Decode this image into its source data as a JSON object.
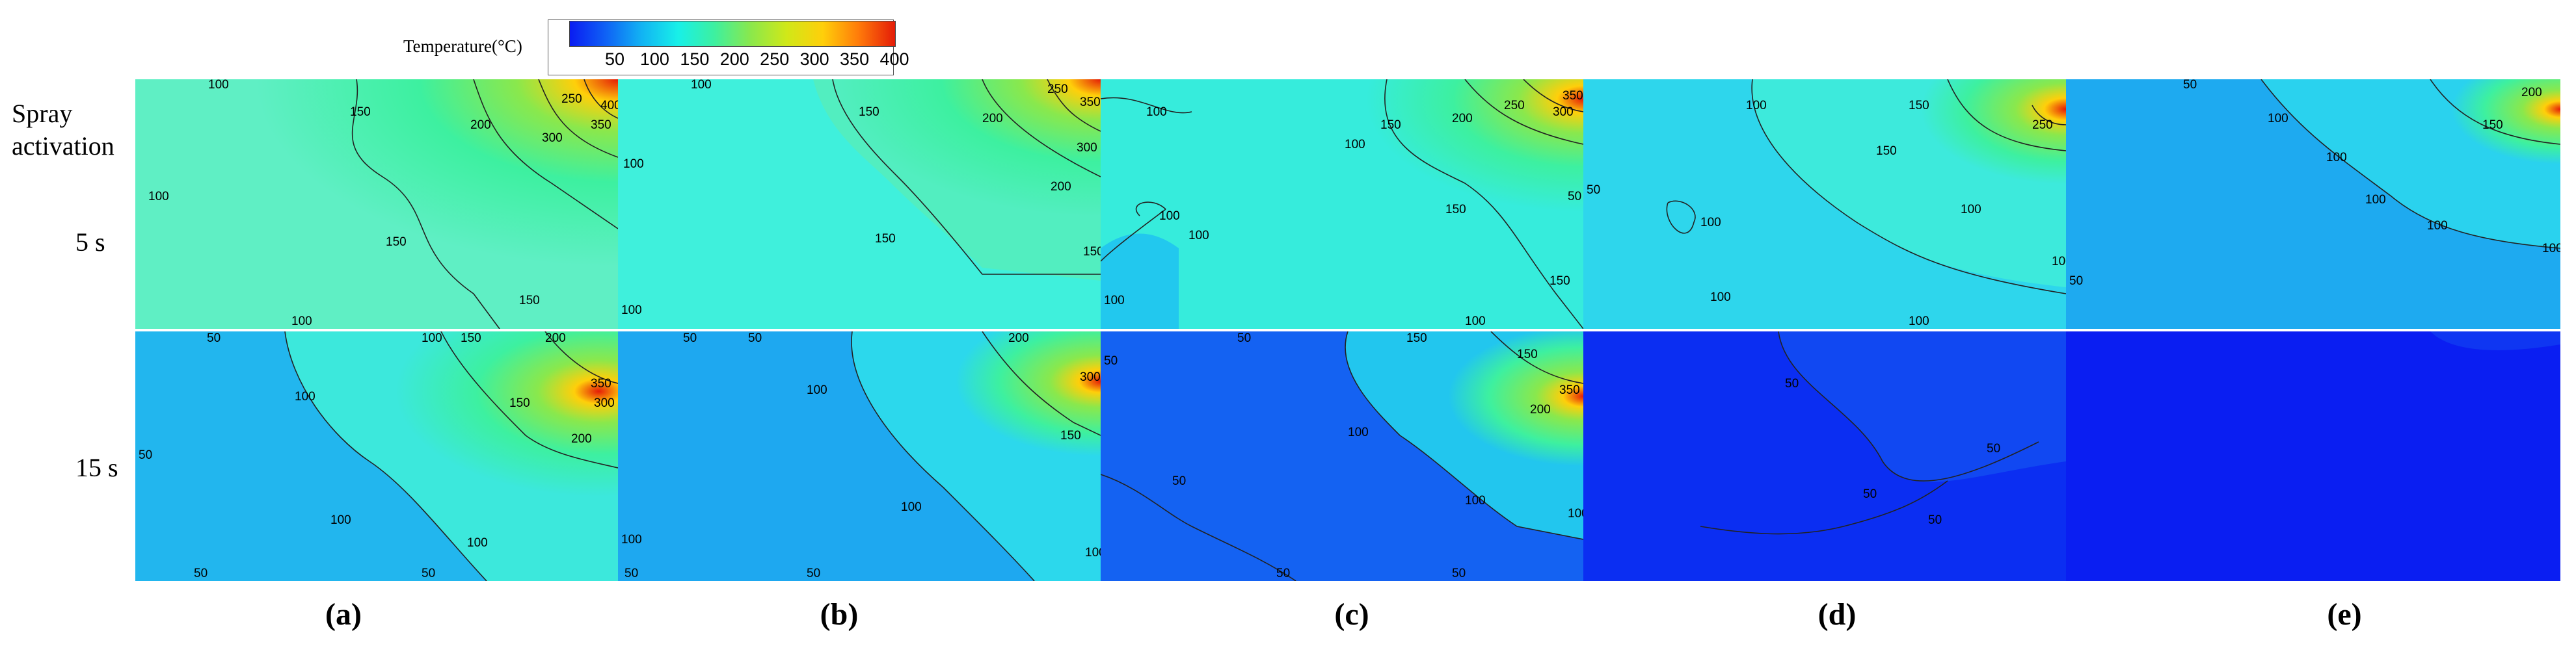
{
  "colorbar": {
    "title": "Temperature(°C)",
    "ticks": [
      "50",
      "100",
      "150",
      "200",
      "250",
      "300",
      "350",
      "400"
    ],
    "colors": [
      "#0a1cf2",
      "#0f62f5",
      "#12b4f3",
      "#18f0e8",
      "#3df0a0",
      "#8ae84c",
      "#d0e818",
      "#ffcf0a",
      "#ff7a0a",
      "#e41c08"
    ]
  },
  "row_labels": {
    "spray": "Spray activation",
    "t5": "5 s",
    "t15": "15 s"
  },
  "captions": [
    "(a)",
    "(b)",
    "(c)",
    "(d)",
    "(e)"
  ],
  "panels": {
    "a5": {
      "labels": [
        "100",
        "150",
        "200",
        "250",
        "300",
        "350",
        "400",
        "100",
        "150",
        "150",
        "100"
      ]
    },
    "b5": {
      "labels": [
        "100",
        "150",
        "200",
        "250",
        "350",
        "300",
        "200",
        "150",
        "100",
        "150",
        "100"
      ]
    },
    "c5": {
      "labels": [
        "100",
        "150",
        "200",
        "250",
        "300",
        "350",
        "100",
        "100",
        "150",
        "150",
        "100",
        "100",
        "100",
        "50"
      ]
    },
    "d5": {
      "labels": [
        "100",
        "150",
        "250",
        "150",
        "100",
        "100",
        "100",
        "100",
        "100",
        "50"
      ]
    },
    "e5": {
      "labels": [
        "50",
        "100",
        "150",
        "200",
        "100",
        "100",
        "100",
        "50",
        "100"
      ]
    },
    "a15": {
      "labels": [
        "50",
        "100",
        "100",
        "150",
        "200",
        "350",
        "300",
        "150",
        "200",
        "100",
        "50",
        "100",
        "50",
        "50"
      ]
    },
    "b15": {
      "labels": [
        "50",
        "50",
        "100",
        "200",
        "300",
        "150",
        "100",
        "50",
        "50",
        "100",
        "100"
      ]
    },
    "c15": {
      "labels": [
        "50",
        "50",
        "100",
        "150",
        "150",
        "350",
        "200",
        "100",
        "50",
        "50",
        "50",
        "100"
      ]
    },
    "d15": {
      "labels": [
        "50",
        "50",
        "50",
        "50"
      ]
    },
    "e15": {
      "labels": []
    }
  }
}
